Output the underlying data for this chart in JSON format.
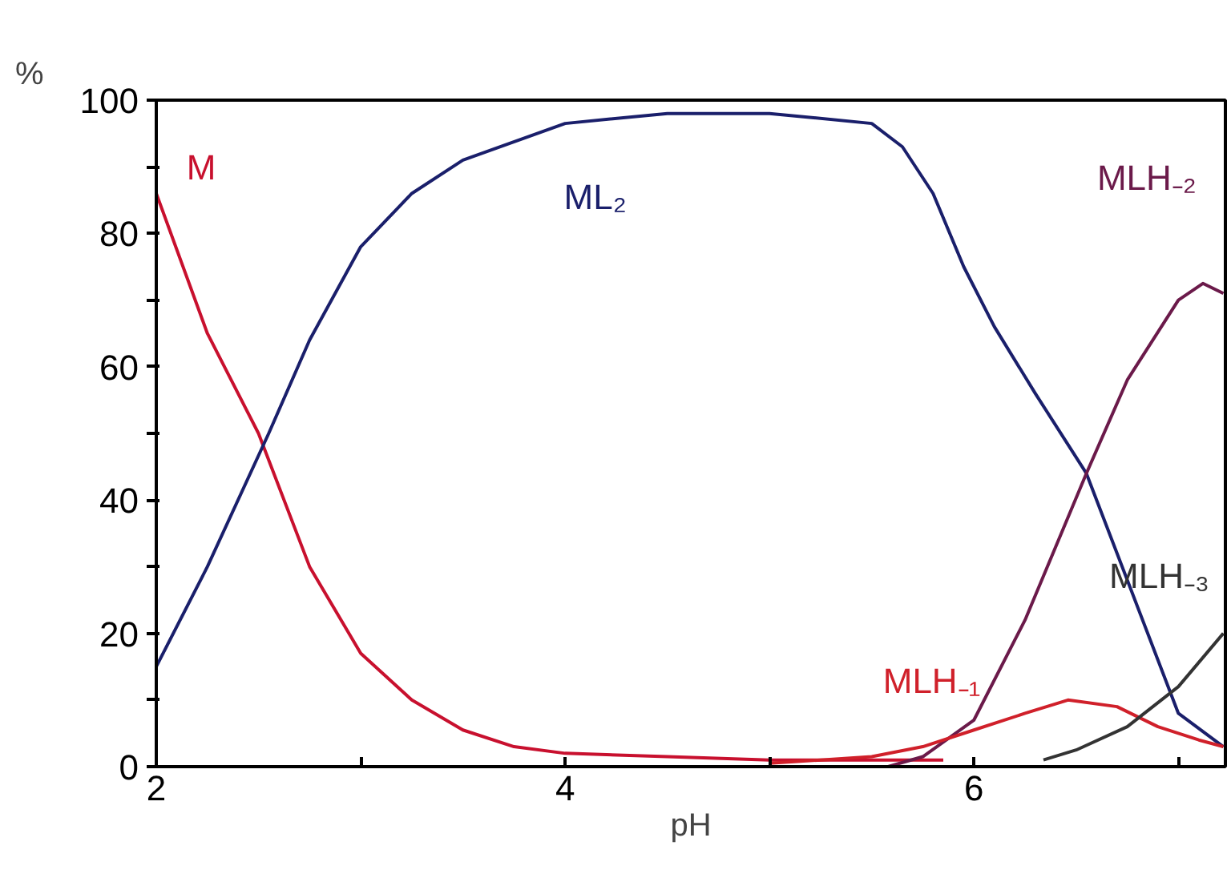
{
  "chart_data": {
    "type": "line",
    "xlabel": "pH",
    "ylabel": "%",
    "xlim": [
      2,
      7.23
    ],
    "ylim": [
      0,
      100
    ],
    "xticks": [
      2,
      {
        "value": 3,
        "label": null
      },
      4,
      {
        "value": 5,
        "label": null
      },
      6,
      {
        "value": 7,
        "label": null
      }
    ],
    "yticks": [
      0,
      {
        "value": 10,
        "label": null
      },
      20,
      {
        "value": 30,
        "label": null
      },
      40,
      {
        "value": 50,
        "label": null
      },
      60,
      {
        "value": 70,
        "label": null
      },
      80,
      {
        "value": 90,
        "label": null
      },
      100
    ],
    "grid": false,
    "marker": "none",
    "line_style": "solid",
    "series": [
      {
        "name": "M",
        "color": "#c8102e",
        "x": [
          2,
          2.25,
          2.5,
          2.75,
          3,
          3.25,
          3.5,
          3.75,
          4,
          4.5,
          5,
          5.5,
          5.85
        ],
        "values": [
          86,
          65,
          50,
          30,
          17,
          10,
          5.5,
          3,
          2,
          1.5,
          1,
          1,
          1
        ]
      },
      {
        "name": "ML₂",
        "color": "#1a1f6b",
        "x": [
          2,
          2.25,
          2.55,
          2.75,
          3,
          3.25,
          3.5,
          4,
          4.5,
          5,
          5.5,
          5.65,
          5.8,
          5.95,
          6.1,
          6.3,
          6.55,
          6.75,
          7,
          7.22
        ],
        "values": [
          15,
          30,
          50,
          64,
          78,
          86,
          91,
          96.5,
          98,
          98,
          96.5,
          93,
          86,
          75,
          66,
          56,
          44,
          28,
          8,
          3
        ]
      },
      {
        "name": "MLH₋₂",
        "color": "#6b1a4a",
        "x": [
          5.58,
          5.75,
          6,
          6.25,
          6.55,
          6.75,
          7,
          7.12,
          7.22
        ],
        "values": [
          0,
          1.5,
          7,
          22,
          44,
          58,
          70,
          72.5,
          71
        ]
      },
      {
        "name": "MLH₋₁",
        "color": "#d0202a",
        "x": [
          5,
          5.25,
          5.5,
          5.75,
          6,
          6.25,
          6.46,
          6.7,
          6.9,
          7.1,
          7.22
        ],
        "values": [
          0.5,
          1,
          1.5,
          3,
          5.5,
          8,
          10,
          9,
          6,
          4,
          3
        ]
      },
      {
        "name": "MLH₋₃",
        "color": "#333333",
        "x": [
          6.34,
          6.5,
          6.75,
          7,
          7.22
        ],
        "values": [
          1,
          2.5,
          6,
          12,
          20
        ]
      }
    ]
  }
}
